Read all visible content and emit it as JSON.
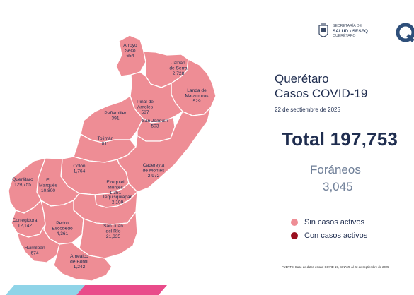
{
  "header": {
    "org_line1": "SECRETARÍA DE",
    "org_line2": "SALUD • SESEQ",
    "org_line3": "QUERÉTARO",
    "logo_letter": "Q"
  },
  "title": {
    "line1": "Querétaro",
    "line2": "Casos COVID-19"
  },
  "report_date": "22 de septiembre de 2025",
  "total": {
    "label": "Total",
    "value": "197,753"
  },
  "foraneos": {
    "label": "Foráneos",
    "value": "3,045"
  },
  "legend": [
    {
      "label": "Sin casos activos",
      "color": "#ee8d95"
    },
    {
      "label": "Con casos activos",
      "color": "#9a0f1f"
    }
  ],
  "colors": {
    "map_fill": "#ee8d95",
    "map_border": "#ffffff",
    "title_text": "#1f2d4f",
    "foraneos_text": "#6f7f98",
    "bar_left": "#8fd4e8",
    "bar_right": "#e94b8a"
  },
  "municipalities": [
    {
      "name": "Arroyo\nSeco",
      "value": "654",
      "status": "sin"
    },
    {
      "name": "Jalpan\nde Serra",
      "value": "2,728",
      "status": "sin"
    },
    {
      "name": "Landa de\nMatamoros",
      "value": "529",
      "status": "sin"
    },
    {
      "name": "Pinal de\nAmoles",
      "value": "587",
      "status": "sin"
    },
    {
      "name": "Peñamiller",
      "value": "391",
      "status": "sin"
    },
    {
      "name": "San Joaquín",
      "value": "503",
      "status": "sin"
    },
    {
      "name": "Tolimán",
      "value": "811",
      "status": "sin"
    },
    {
      "name": "Cadereyta\nde Montes",
      "value": "2,972",
      "status": "sin"
    },
    {
      "name": "Colón",
      "value": "1,764",
      "status": "sin"
    },
    {
      "name": "El\nMarqués",
      "value": "10,800",
      "status": "sin"
    },
    {
      "name": "Querétaro",
      "value": "129,755",
      "status": "sin"
    },
    {
      "name": "Ezequiel\nMontes",
      "value": "1,351",
      "status": "sin"
    },
    {
      "name": "Tequisquiapan",
      "value": "2,109",
      "status": "sin"
    },
    {
      "name": "Corregidora",
      "value": "12,142",
      "status": "sin"
    },
    {
      "name": "Pedro\nEscobedo",
      "value": "4,361",
      "status": "sin"
    },
    {
      "name": "San Juan\ndel Río",
      "value": "21,335",
      "status": "sin"
    },
    {
      "name": "Huimilpan",
      "value": "674",
      "status": "sin"
    },
    {
      "name": "Amealco\nde Bonfil",
      "value": "1,242",
      "status": "sin"
    }
  ],
  "source": "FUENTE: Base de datos estatal COVID-19, SINAVE al 22 de septiembre de 2025"
}
